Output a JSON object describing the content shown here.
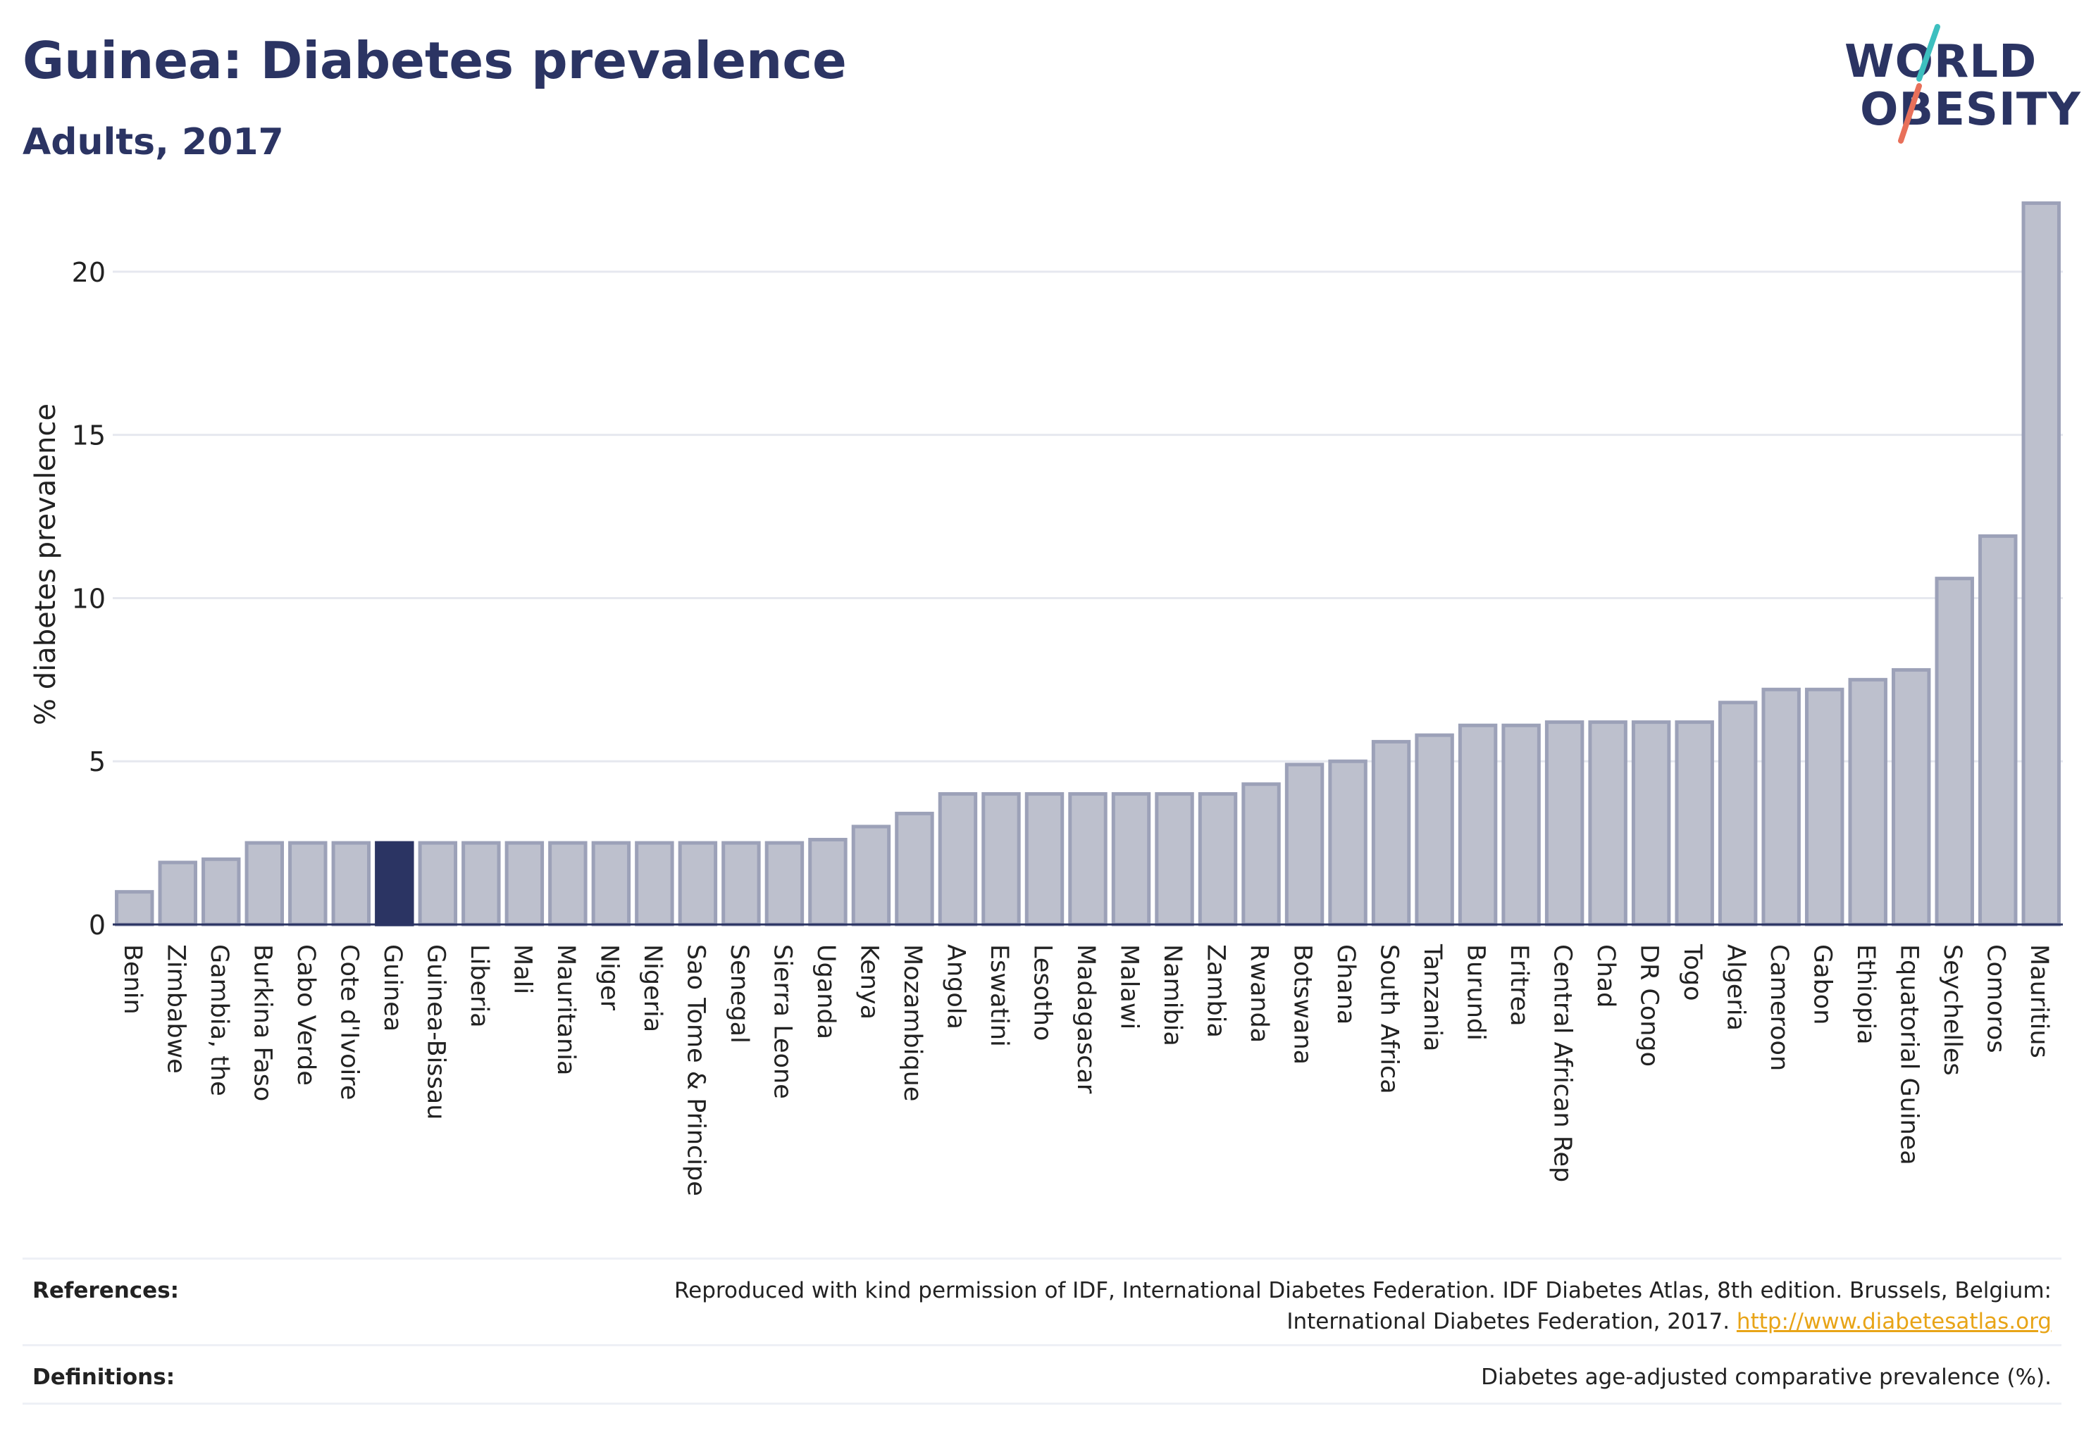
{
  "header": {
    "title": "Guinea: Diabetes prevalence",
    "subtitle": "Adults, 2017"
  },
  "logo": {
    "line1": "WORLD",
    "line2": "OBESITY",
    "colors": {
      "text": "#2b3463",
      "stroke_top": "#3dbfbf",
      "stroke_bottom": "#e8705a"
    }
  },
  "colors": {
    "highlight_bar": "#2b3463",
    "bar_fill": "#bdc0cd",
    "bar_stroke": "#9ca1b8",
    "grid": "#e6e8ef",
    "link": "#e8a417"
  },
  "chart_data": {
    "type": "bar",
    "ylabel": "% diabetes prevalence",
    "ylim": [
      0,
      22.5
    ],
    "yticks": [
      0,
      5,
      10,
      15,
      20
    ],
    "grid": true,
    "highlight": "Guinea",
    "categories": [
      "Benin",
      "Zimbabwe",
      "Gambia, the",
      "Burkina Faso",
      "Cabo Verde",
      "Cote d'Ivoire",
      "Guinea",
      "Guinea-Bissau",
      "Liberia",
      "Mali",
      "Mauritania",
      "Niger",
      "Nigeria",
      "Sao Tome & Principe",
      "Senegal",
      "Sierra Leone",
      "Uganda",
      "Kenya",
      "Mozambique",
      "Angola",
      "Eswatini",
      "Lesotho",
      "Madagascar",
      "Malawi",
      "Namibia",
      "Zambia",
      "Rwanda",
      "Botswana",
      "Ghana",
      "South Africa",
      "Tanzania",
      "Burundi",
      "Eritrea",
      "Central African Rep",
      "Chad",
      "DR Congo",
      "Togo",
      "Algeria",
      "Cameroon",
      "Gabon",
      "Ethiopia",
      "Equatorial Guinea",
      "Seychelles",
      "Comoros",
      "Mauritius"
    ],
    "values": [
      1.0,
      1.9,
      2.0,
      2.5,
      2.5,
      2.5,
      2.5,
      2.5,
      2.5,
      2.5,
      2.5,
      2.5,
      2.5,
      2.5,
      2.5,
      2.5,
      2.6,
      3.0,
      3.4,
      4.0,
      4.0,
      4.0,
      4.0,
      4.0,
      4.0,
      4.0,
      4.3,
      4.9,
      5.0,
      5.6,
      5.8,
      6.1,
      6.1,
      6.2,
      6.2,
      6.2,
      6.2,
      6.8,
      7.2,
      7.2,
      7.5,
      7.8,
      10.6,
      11.9,
      22.1
    ]
  },
  "footer": {
    "references_label": "References:",
    "references_line1": "Reproduced with kind permission of IDF, International Diabetes Federation. IDF Diabetes Atlas, 8th edition. Brussels, Belgium:",
    "references_line2": "International Diabetes Federation, 2017.",
    "references_link": "http://www.diabetesatlas.org",
    "definitions_label": "Definitions:",
    "definitions_text": "Diabetes age-adjusted comparative prevalence (%)."
  }
}
